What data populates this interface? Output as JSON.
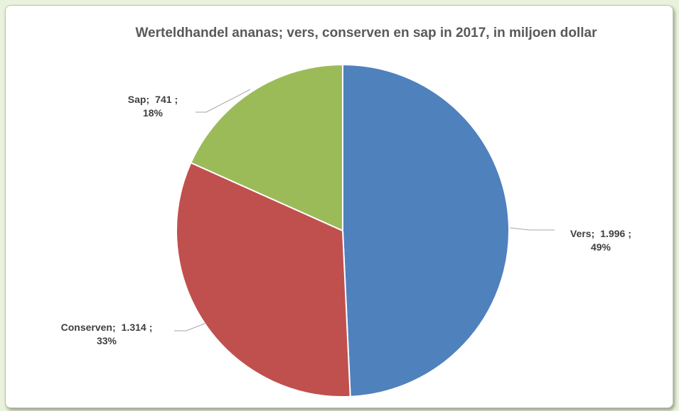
{
  "chart_data": {
    "type": "pie",
    "title": "Werteldhandel ananas; vers, conserven en sap in 2017, in miljoen dollar",
    "categories": [
      "Vers",
      "Conserven",
      "Sap"
    ],
    "values": [
      1996,
      1314,
      741
    ],
    "value_labels": [
      "1.996",
      "1.314",
      "741"
    ],
    "percents": [
      49,
      33,
      18
    ],
    "percent_labels": [
      "49%",
      "33%",
      "18%"
    ],
    "label_separator": ";",
    "colors": [
      "#4f81bd",
      "#c0504d",
      "#9bbb59"
    ]
  }
}
